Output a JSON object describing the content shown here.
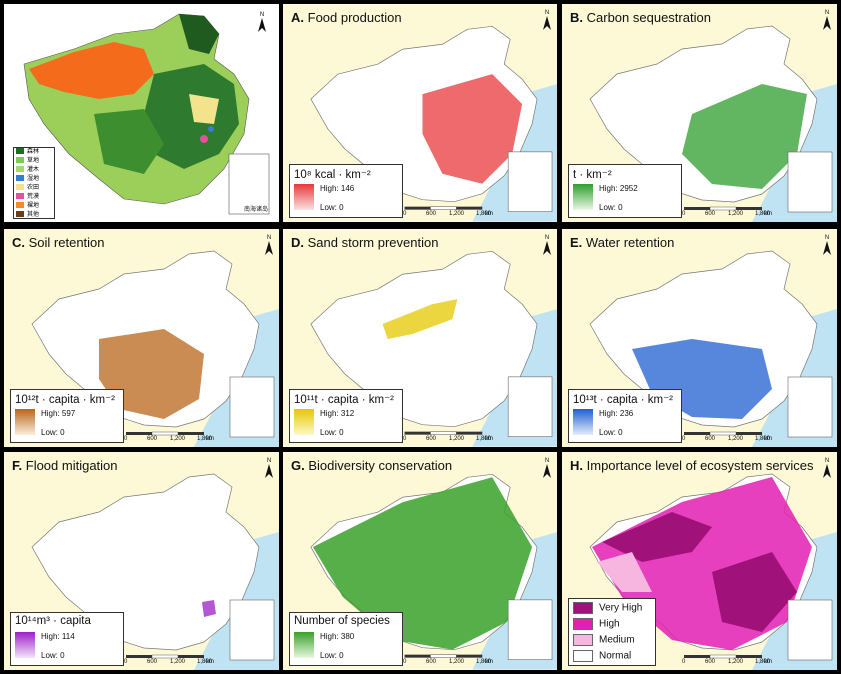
{
  "overview_map": {
    "legend": [
      {
        "label": "森林",
        "color": "#1e6e1e"
      },
      {
        "label": "草地",
        "color": "#7ccf4e"
      },
      {
        "label": "灌木",
        "color": "#a9d66a"
      },
      {
        "label": "湿地",
        "color": "#3a7bd5"
      },
      {
        "label": "农田",
        "color": "#f3e28a"
      },
      {
        "label": "荒漠",
        "color": "#e0529b"
      },
      {
        "label": "裸地",
        "color": "#f08a2e"
      },
      {
        "label": "其他",
        "color": "#6a3c1e"
      }
    ],
    "north": "N",
    "inset_label": "南海诸岛"
  },
  "panels": [
    {
      "letter": "A.",
      "title": "Food production",
      "unit": "10⁸ kcal · km⁻²",
      "high": "High: 146",
      "low": "Low: 0",
      "color_high": "#e8383c",
      "color_low": "#fbe1e1"
    },
    {
      "letter": "B.",
      "title": "Carbon sequestration",
      "unit": "t · km⁻²",
      "high": "High: 2952",
      "low": "Low: 0",
      "color_high": "#2e9e2e",
      "color_low": "#eaf7e4"
    },
    {
      "letter": "C.",
      "title": "Soil retention",
      "unit": "10¹²t · capita · km⁻²",
      "high": "High: 597",
      "low": "Low: 0",
      "color_high": "#b8651a",
      "color_low": "#fbeedd"
    },
    {
      "letter": "D.",
      "title": "Sand storm prevention",
      "unit": "10¹¹t · capita · km⁻²",
      "high": "High: 312",
      "low": "Low: 0",
      "color_high": "#e6c800",
      "color_low": "#fff8c9"
    },
    {
      "letter": "E.",
      "title": "Water retention",
      "unit": "10¹³t · capita · km⁻²",
      "high": "High: 236",
      "low": "Low: 0",
      "color_high": "#1f5fd0",
      "color_low": "#e4edfb"
    },
    {
      "letter": "F.",
      "title": "Flood mitigation",
      "unit": "10¹⁴m³ · capita",
      "high": "High: 114",
      "low": "Low: 0",
      "color_high": "#9b1fc8",
      "color_low": "#f5e4fb"
    },
    {
      "letter": "G.",
      "title": "Biodiversity conservation",
      "unit": "Number of species",
      "high": "High: 380",
      "low": "Low: 0",
      "color_high": "#3aa12a",
      "color_low": "#e7f8df"
    },
    {
      "letter": "H.",
      "title": "Importance level of ecosystem services",
      "categories": [
        {
          "label": "Very High",
          "color": "#a0127a"
        },
        {
          "label": "High",
          "color": "#e21fb3"
        },
        {
          "label": "Medium",
          "color": "#f6b6e0"
        },
        {
          "label": "Normal",
          "color": "#ffffff"
        }
      ]
    }
  ],
  "scale_bar": {
    "ticks": [
      "0",
      "600",
      "1,200",
      "1,800"
    ],
    "unit": "km"
  },
  "north_arrow": "N"
}
